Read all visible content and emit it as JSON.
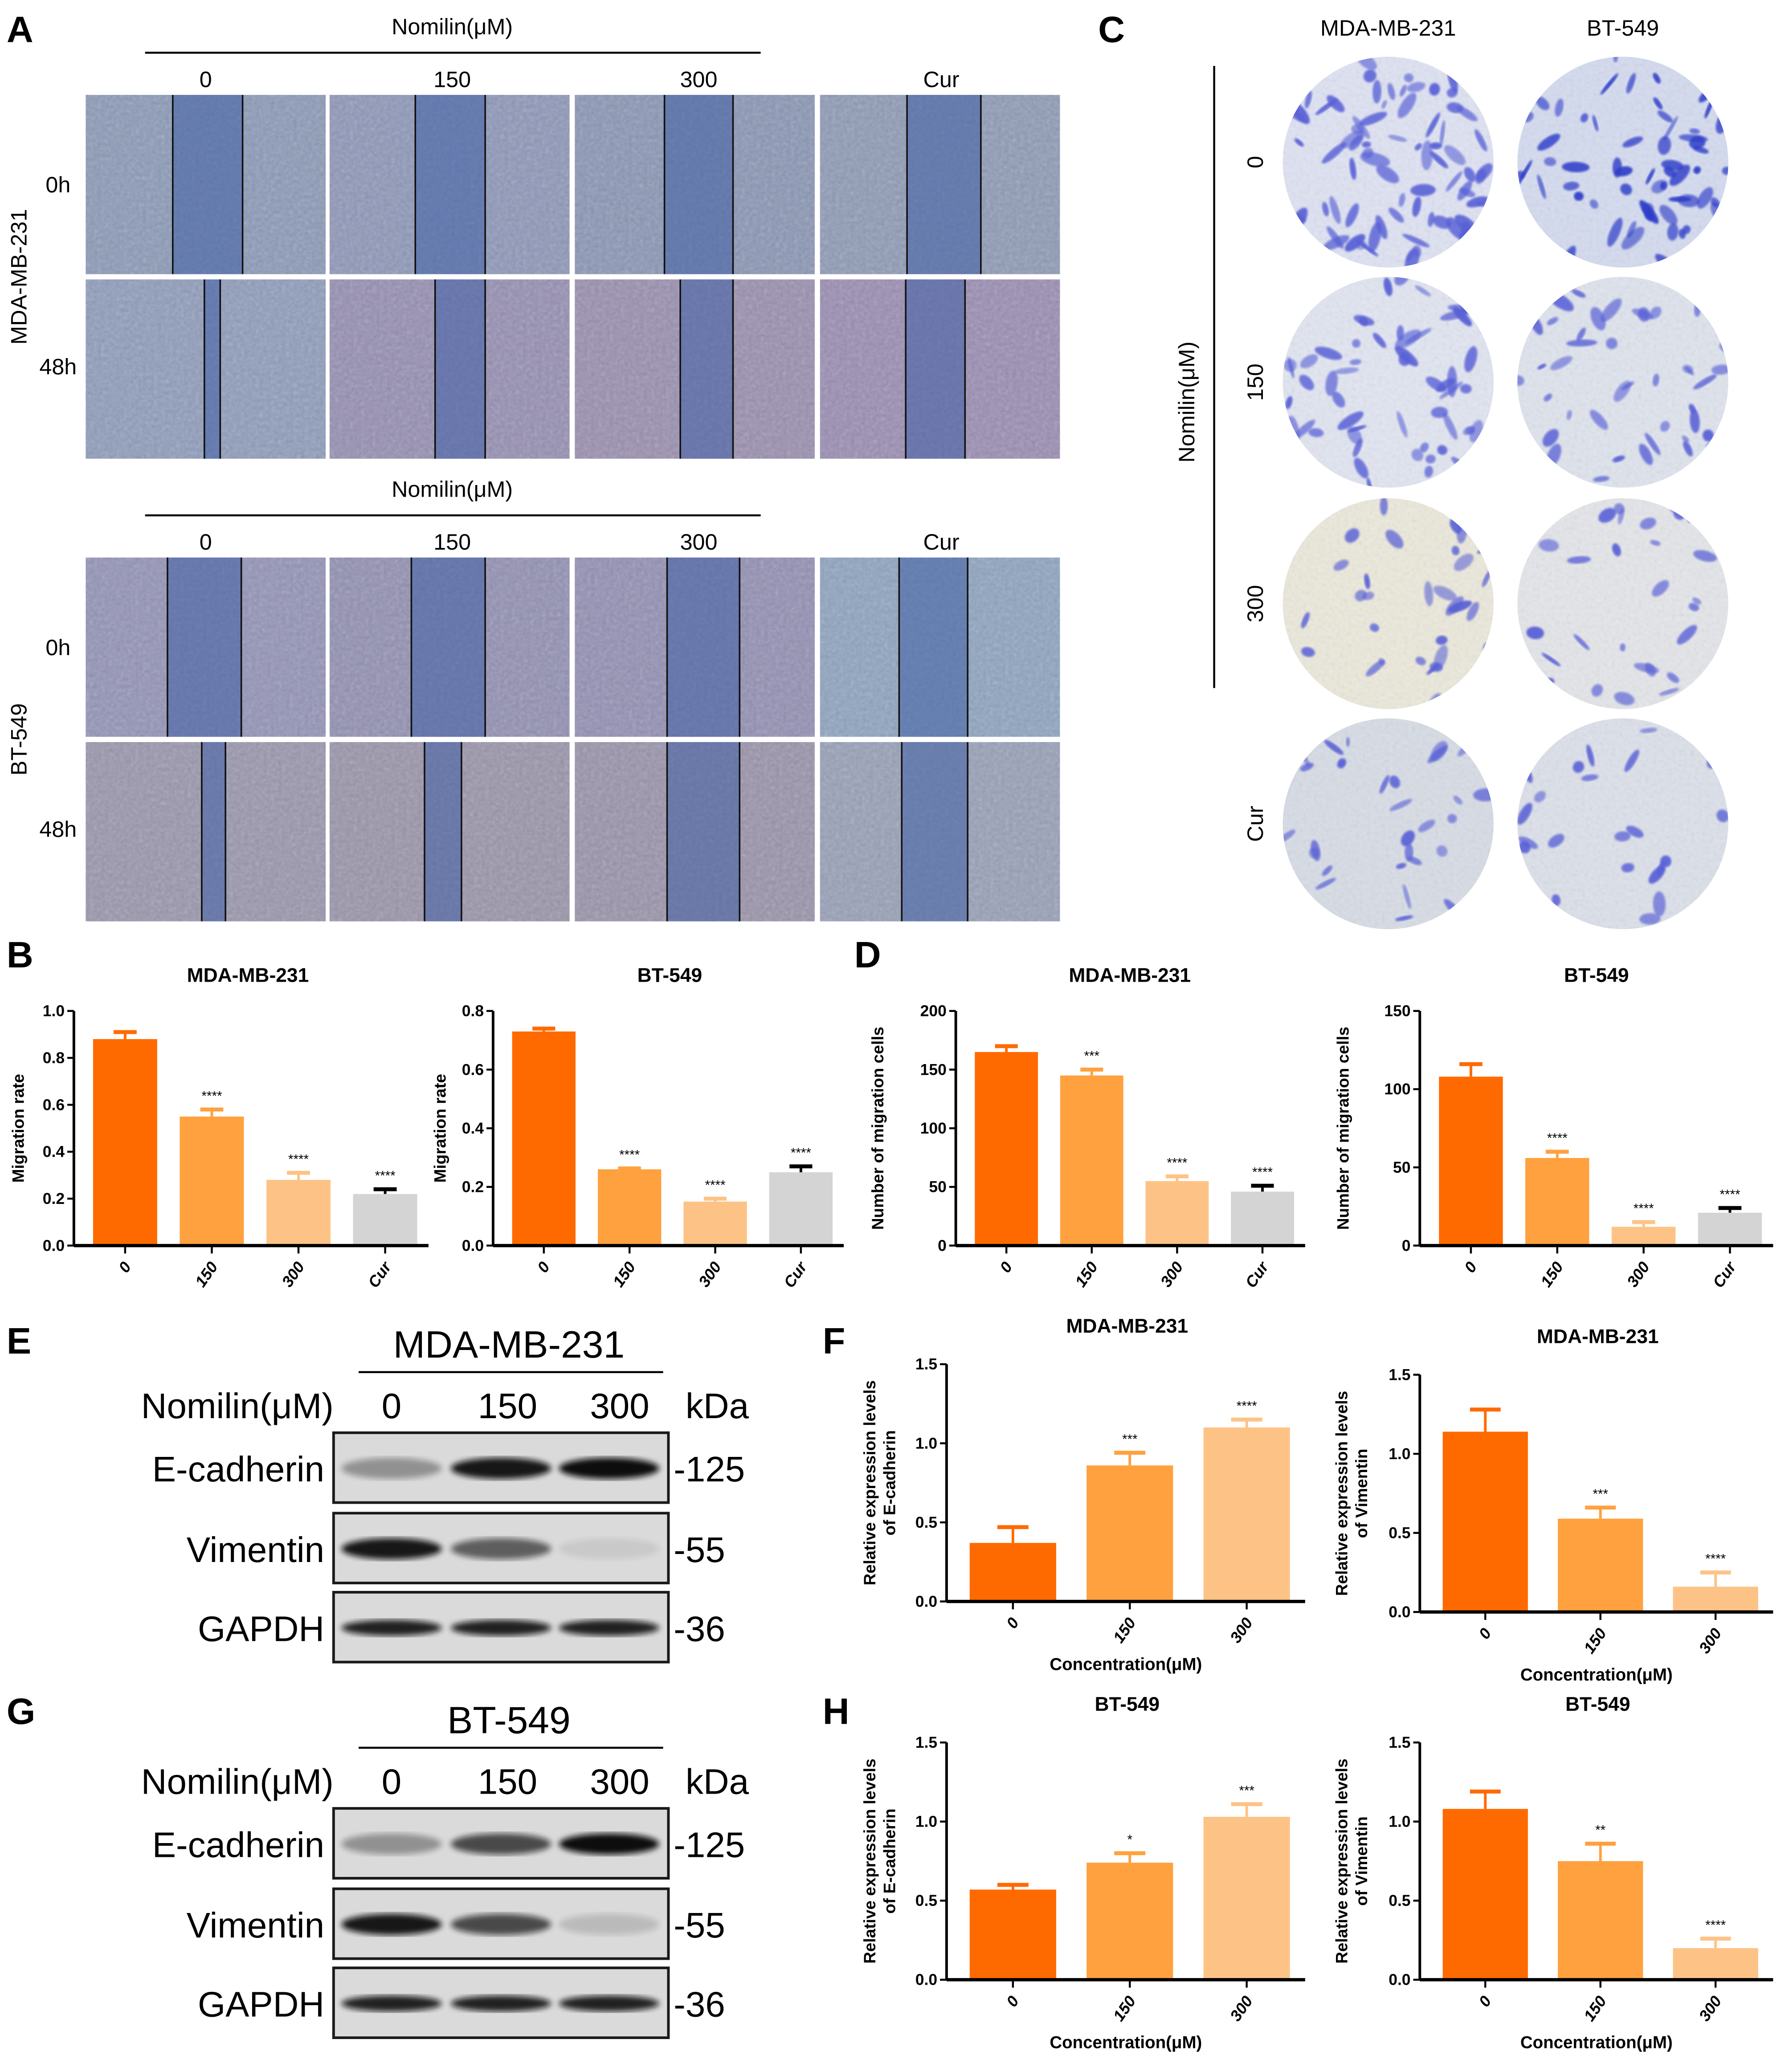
{
  "panel_labels": [
    "A",
    "B",
    "C",
    "D",
    "E",
    "F",
    "G",
    "H"
  ],
  "panel_a": {
    "treatment_label": "Nomilin(μM)",
    "columns": [
      "0",
      "150",
      "300",
      "Cur"
    ],
    "rows": [
      "0h",
      "48h"
    ],
    "cell_lines": [
      "MDA-MB-231",
      "BT-549"
    ]
  },
  "panel_c": {
    "columns": [
      "MDA-MB-231",
      "BT-549"
    ],
    "treatment_label": "Nomilin(μM)",
    "rows": [
      "0",
      "150",
      "300",
      "Cur"
    ]
  },
  "blots": [
    {
      "cell_line": "MDA-MB-231",
      "treatment_label": "Nomilin(μM)",
      "lanes": [
        "0",
        "150",
        "300"
      ],
      "unit": "kDa",
      "proteins": [
        {
          "name": "E-cadherin",
          "kda": "-125"
        },
        {
          "name": "Vimentin",
          "kda": "-55"
        },
        {
          "name": "GAPDH",
          "kda": "-36"
        }
      ]
    },
    {
      "cell_line": "BT-549",
      "treatment_label": "Nomilin(μM)",
      "lanes": [
        "0",
        "150",
        "300"
      ],
      "unit": "kDa",
      "proteins": [
        {
          "name": "E-cadherin",
          "kda": "-125"
        },
        {
          "name": "Vimentin",
          "kda": "-55"
        },
        {
          "name": "GAPDH",
          "kda": "-36"
        }
      ]
    }
  ],
  "colors": {
    "0": "#FF6A00",
    "150": "#FFA13F",
    "300": "#FDC386",
    "Cur": "#D4D4D4"
  },
  "chart_data": [
    {
      "type": "bar",
      "panel": "B",
      "title": "MDA-MB-231",
      "ylabel": [
        "Migration rate"
      ],
      "xlabel": "",
      "categories": [
        "0",
        "150",
        "300",
        "Cur"
      ],
      "values": [
        0.88,
        0.55,
        0.28,
        0.22
      ],
      "errors": [
        0.03,
        0.03,
        0.03,
        0.02
      ],
      "significance": [
        "",
        "****",
        "****",
        "****"
      ],
      "ylim": [
        0,
        1.0
      ],
      "yticks": [
        "0.0",
        "0.2",
        "0.4",
        "0.6",
        "0.8",
        "1.0"
      ]
    },
    {
      "type": "bar",
      "panel": "B",
      "title": "BT-549",
      "ylabel": [
        "Migration rate"
      ],
      "xlabel": "",
      "categories": [
        "0",
        "150",
        "300",
        "Cur"
      ],
      "values": [
        0.73,
        0.26,
        0.15,
        0.25
      ],
      "errors": [
        0.01,
        0.003,
        0.01,
        0.02
      ],
      "significance": [
        "",
        "****",
        "****",
        "****"
      ],
      "ylim": [
        0,
        0.8
      ],
      "yticks": [
        "0.0",
        "0.2",
        "0.4",
        "0.6",
        "0.8"
      ]
    },
    {
      "type": "bar",
      "panel": "D",
      "title": "MDA-MB-231",
      "ylabel": [
        "Number of migration cells"
      ],
      "xlabel": "",
      "categories": [
        "0",
        "150",
        "300",
        "Cur"
      ],
      "values": [
        165,
        145,
        55,
        46
      ],
      "errors": [
        5,
        5,
        4,
        5
      ],
      "significance": [
        "",
        "***",
        "****",
        "****"
      ],
      "ylim": [
        0,
        200
      ],
      "yticks": [
        "0",
        "50",
        "100",
        "150",
        "200"
      ]
    },
    {
      "type": "bar",
      "panel": "D",
      "title": "BT-549",
      "ylabel": [
        "Number of migration cells"
      ],
      "xlabel": "",
      "categories": [
        "0",
        "150",
        "300",
        "Cur"
      ],
      "values": [
        108,
        56,
        12,
        21
      ],
      "errors": [
        8,
        4,
        3,
        3
      ],
      "significance": [
        "",
        "****",
        "****",
        "****"
      ],
      "ylim": [
        0,
        150
      ],
      "yticks": [
        "0",
        "50",
        "100",
        "150"
      ]
    },
    {
      "type": "bar",
      "panel": "F",
      "title": "MDA-MB-231",
      "ylabel": [
        "Relative expression levels",
        "of E-cadherin"
      ],
      "xlabel": "Concentration(μM)",
      "categories": [
        "0",
        "150",
        "300"
      ],
      "values": [
        0.37,
        0.86,
        1.1
      ],
      "errors": [
        0.1,
        0.08,
        0.05
      ],
      "significance": [
        "",
        "***",
        "****"
      ],
      "ylim": [
        0,
        1.5
      ],
      "yticks": [
        "0.0",
        "0.5",
        "1.0",
        "1.5"
      ]
    },
    {
      "type": "bar",
      "panel": "F",
      "title": "MDA-MB-231",
      "ylabel": [
        "Relative expression levels",
        "of Vimentin"
      ],
      "xlabel": "Concentration(μM)",
      "categories": [
        "0",
        "150",
        "300"
      ],
      "values": [
        1.14,
        0.59,
        0.16
      ],
      "errors": [
        0.14,
        0.07,
        0.09
      ],
      "significance": [
        "",
        "***",
        "****"
      ],
      "ylim": [
        0,
        1.5
      ],
      "yticks": [
        "0.0",
        "0.5",
        "1.0",
        "1.5"
      ]
    },
    {
      "type": "bar",
      "panel": "H",
      "title": "BT-549",
      "ylabel": [
        "Relative expression levels",
        "of E-cadherin"
      ],
      "xlabel": "Concentration(μM)",
      "categories": [
        "0",
        "150",
        "300"
      ],
      "values": [
        0.57,
        0.74,
        1.03
      ],
      "errors": [
        0.03,
        0.06,
        0.08
      ],
      "significance": [
        "",
        "*",
        "***"
      ],
      "ylim": [
        0,
        1.5
      ],
      "yticks": [
        "0.0",
        "0.5",
        "1.0",
        "1.5"
      ]
    },
    {
      "type": "bar",
      "panel": "H",
      "title": "BT-549",
      "ylabel": [
        "Relative expression levels",
        "of Vimentin"
      ],
      "xlabel": "Concentration(μM)",
      "categories": [
        "0",
        "150",
        "300"
      ],
      "values": [
        1.08,
        0.75,
        0.2
      ],
      "errors": [
        0.11,
        0.11,
        0.06
      ],
      "significance": [
        "",
        "**",
        "****"
      ],
      "ylim": [
        0,
        1.5
      ],
      "yticks": [
        "0.0",
        "0.5",
        "1.0",
        "1.5"
      ]
    }
  ]
}
